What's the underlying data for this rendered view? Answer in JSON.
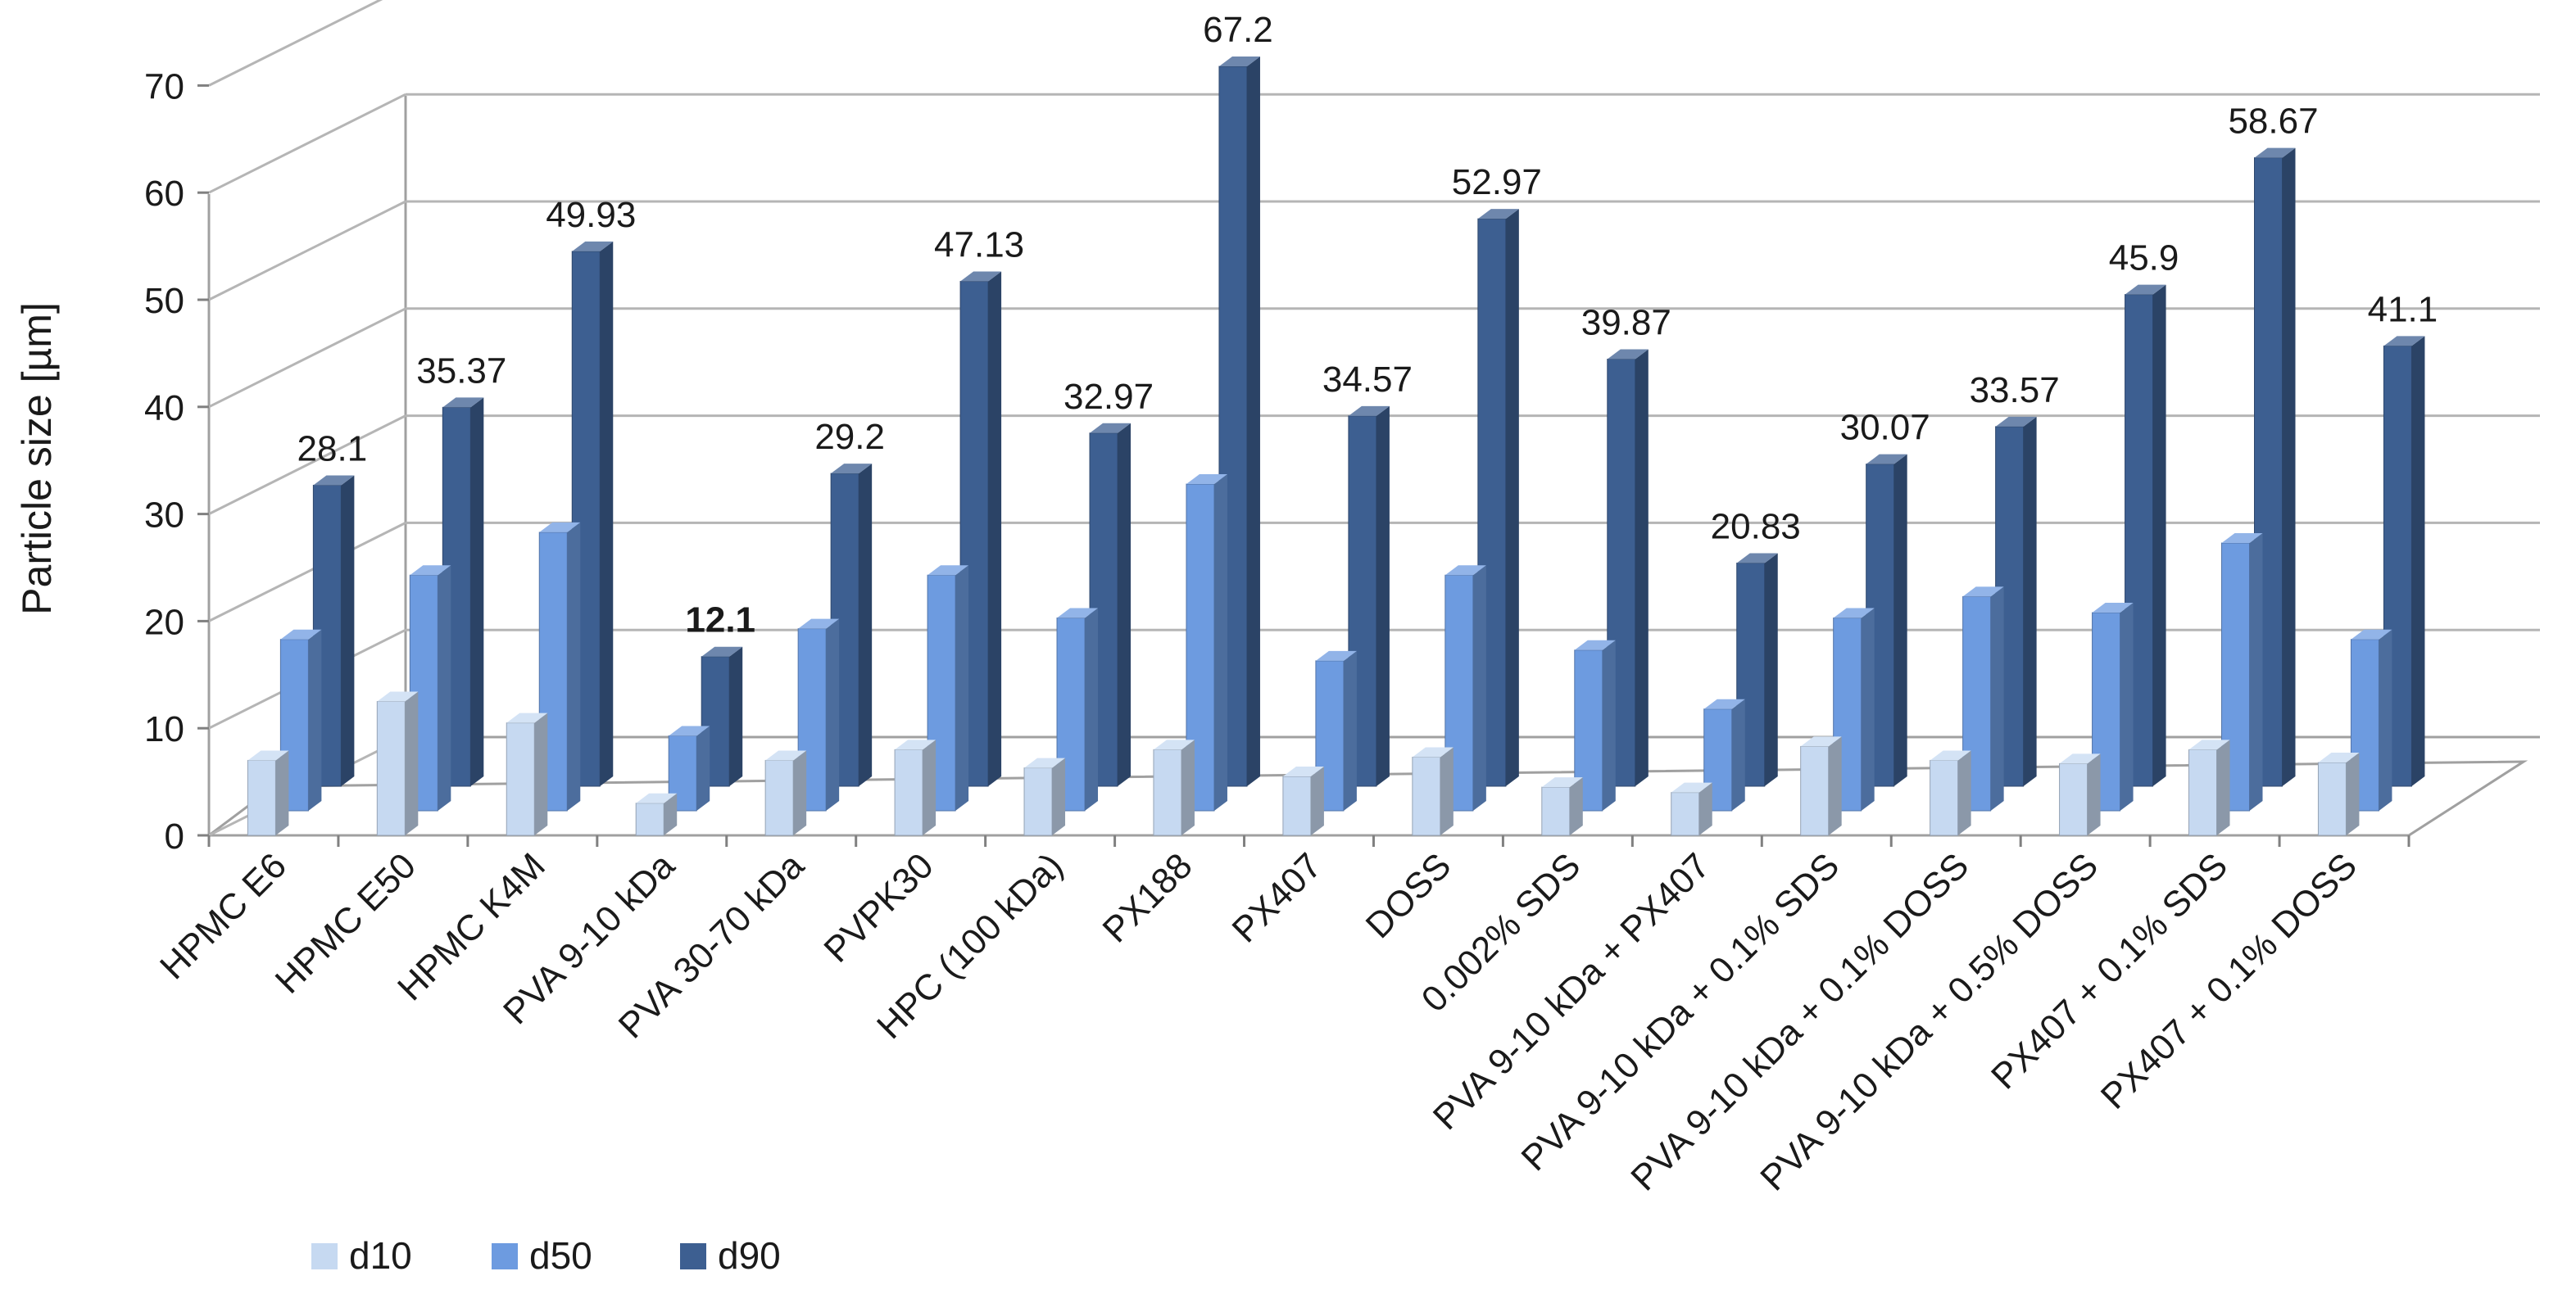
{
  "chart_data": {
    "type": "bar",
    "ylabel": "Particle size [µm]",
    "ylim": [
      0,
      70
    ],
    "yticks": [
      0,
      10,
      20,
      30,
      40,
      50,
      60,
      70
    ],
    "grid": true,
    "legend_position": "bottom-left",
    "categories": [
      "HPMC E6",
      "HPMC E50",
      "HPMC K4M",
      "PVA 9-10 kDa",
      "PVA 30-70 kDa",
      "PVPK30",
      "HPC (100 kDa)",
      "PX188",
      "PX407",
      "DOSS",
      "0.002% SDS",
      "PVA 9-10 kDa +  PX407",
      "PVA 9-10 kDa + 0.1% SDS",
      "PVA 9-10 kDa + 0.1% DOSS",
      "PVA 9-10 kDa + 0.5% DOSS",
      "PX407 + 0.1% SDS",
      "PX407 + 0.1% DOSS"
    ],
    "series": [
      {
        "name": "d10",
        "color": "#c6d9f1",
        "values": [
          7.0,
          12.5,
          10.5,
          3.0,
          7.0,
          8.0,
          6.3,
          8.0,
          5.5,
          7.3,
          4.5,
          4.0,
          8.3,
          7.0,
          6.7,
          8.0,
          6.8
        ]
      },
      {
        "name": "d50",
        "color": "#6d9be0",
        "values": [
          16.0,
          22.0,
          26.0,
          7.0,
          17.0,
          22.0,
          18.0,
          30.5,
          14.0,
          22.0,
          15.0,
          9.5,
          18.0,
          20.0,
          18.5,
          25.0,
          16.0
        ]
      },
      {
        "name": "d90",
        "color": "#3d5f91",
        "values": [
          28.1,
          35.37,
          49.93,
          12.1,
          29.2,
          47.13,
          32.97,
          67.2,
          34.57,
          52.97,
          39.87,
          20.83,
          30.07,
          33.57,
          45.9,
          58.67,
          41.1
        ]
      }
    ],
    "data_labels": [
      "28.1",
      "35.37",
      "49.93",
      "12.1",
      "29.2",
      "47.13",
      "32.97",
      "67.2",
      "34.57",
      "52.97",
      "39.87",
      "20.83",
      "30.07",
      "33.57",
      "45.9",
      "58.67",
      "41.1"
    ],
    "bold_label_index": 3
  }
}
